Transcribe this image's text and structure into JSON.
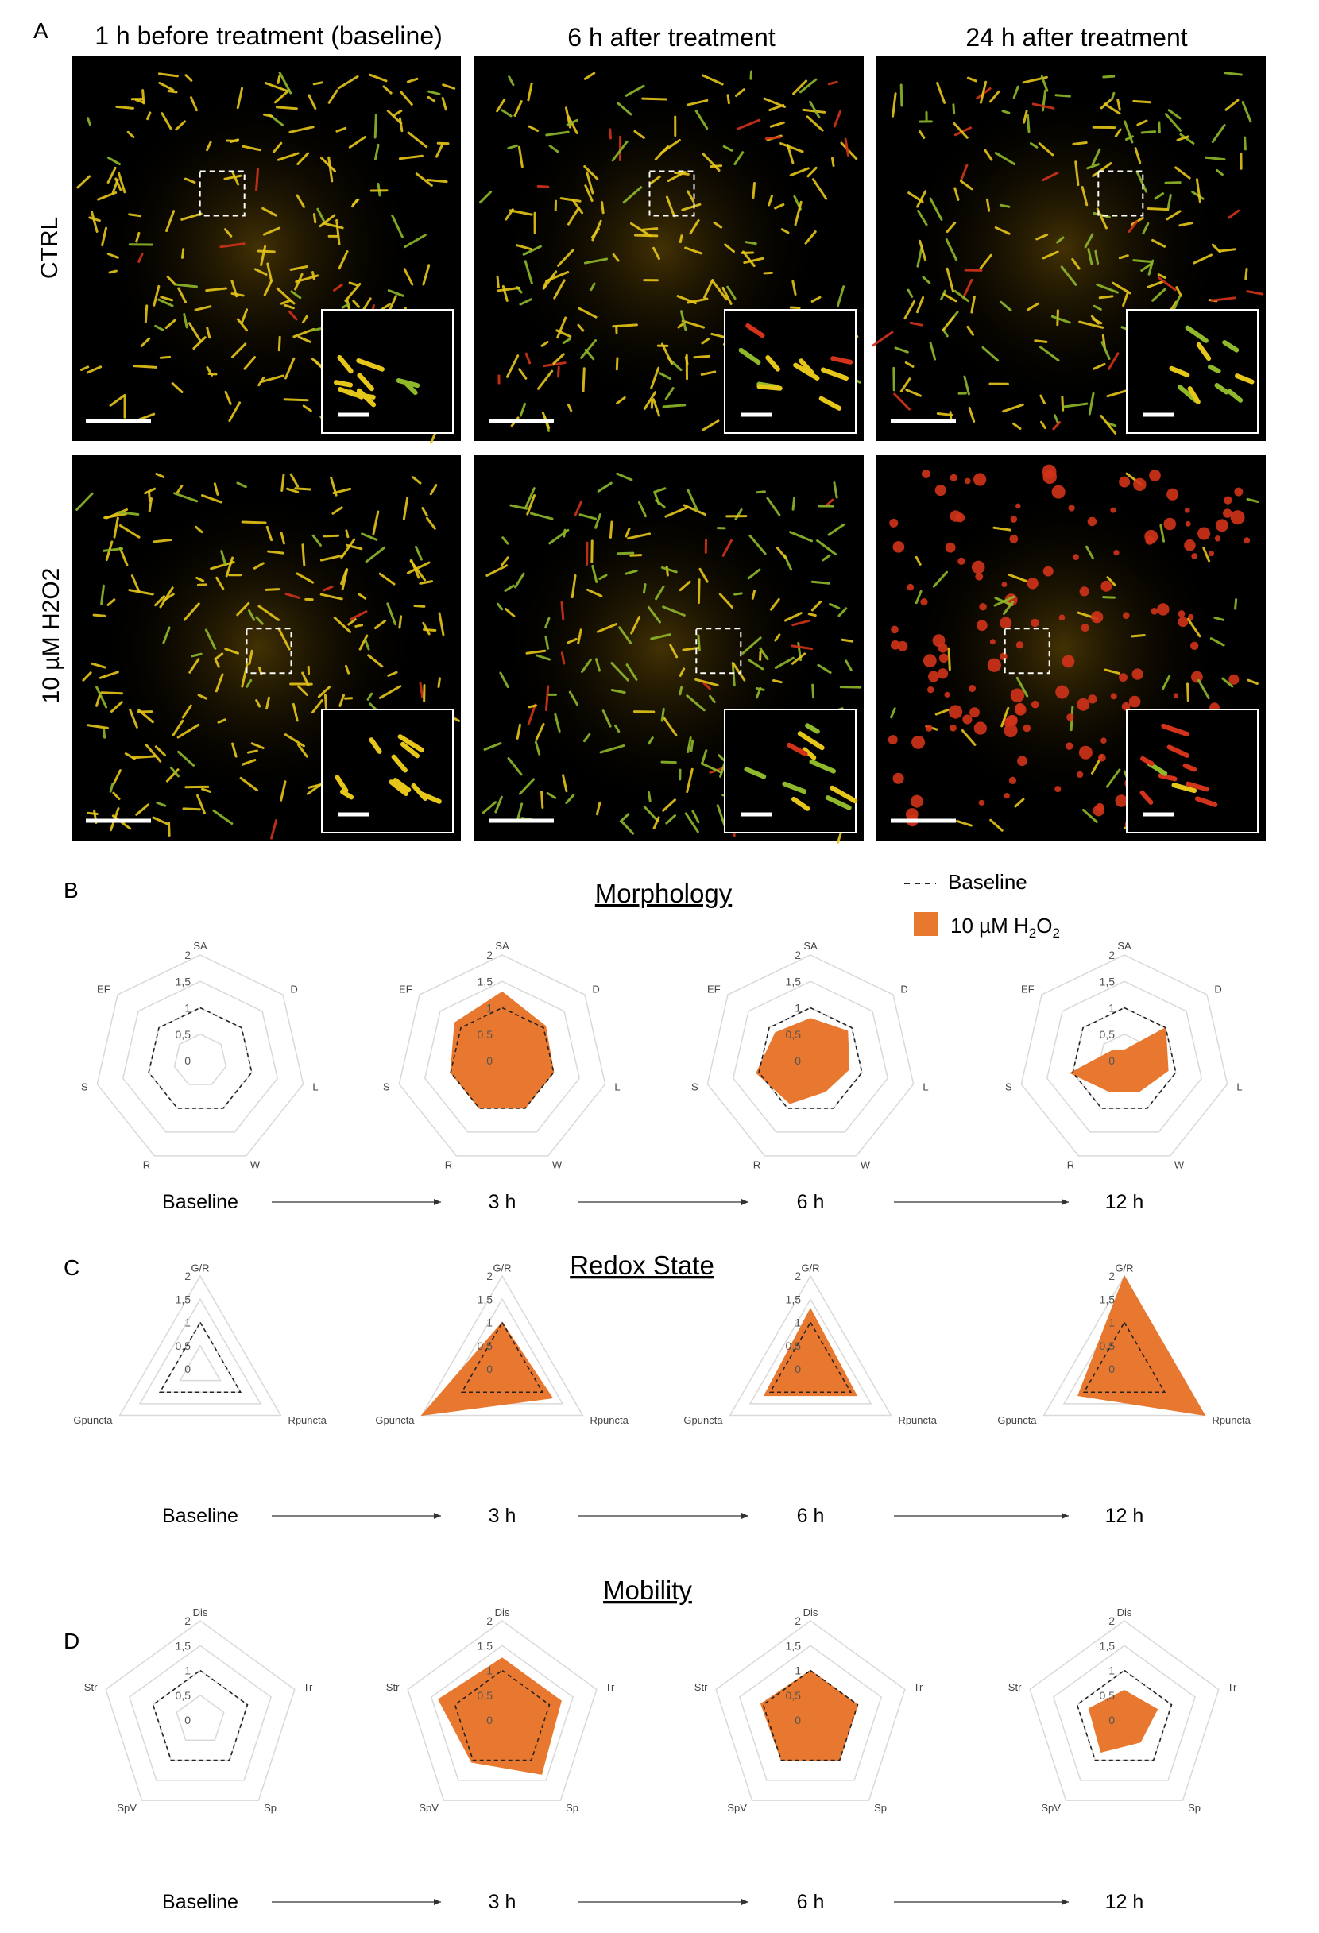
{
  "panel_letters": {
    "a": "A",
    "b": "B",
    "c": "C",
    "d": "D"
  },
  "panel_a": {
    "columns": [
      "1 h before treatment (baseline)",
      "6 h after treatment",
      "24 h after treatment"
    ],
    "rows": [
      "CTRL",
      "10 µM H2O2"
    ]
  },
  "legend": {
    "baseline": "Baseline",
    "treatment": "10 µM H2O2"
  },
  "colors": {
    "treatment": "#e8782f",
    "grid": "#d9d9d9",
    "baseline": "#222222"
  },
  "timepoints": [
    "Baseline",
    "3 h",
    "6 h",
    "12 h"
  ],
  "scale_ticks": [
    "0",
    "0,5",
    "1",
    "1,5",
    "2"
  ],
  "chart_data": [
    {
      "type": "radar",
      "title": "Morphology",
      "axes": [
        "SA",
        "D",
        "L",
        "W",
        "R",
        "S",
        "EF"
      ],
      "range": [
        0,
        2
      ],
      "panels": [
        {
          "time": "Baseline",
          "series": [
            {
              "name": "Baseline",
              "values": [
                1,
                1,
                1,
                1,
                1,
                1,
                1
              ]
            }
          ]
        },
        {
          "time": "3 h",
          "series": [
            {
              "name": "Baseline",
              "values": [
                1,
                1,
                1,
                1,
                1,
                1,
                1
              ]
            },
            {
              "name": "10 µM H2O2",
              "values": [
                1.3,
                1.05,
                1.0,
                1.0,
                1.0,
                1.0,
                1.15
              ]
            }
          ]
        },
        {
          "time": "6 h",
          "series": [
            {
              "name": "Baseline",
              "values": [
                1,
                1,
                1,
                1,
                1,
                1,
                1
              ]
            },
            {
              "name": "10 µM H2O2",
              "values": [
                0.8,
                0.9,
                0.75,
                0.65,
                0.9,
                1.05,
                0.85
              ]
            }
          ]
        },
        {
          "time": "12 h",
          "series": [
            {
              "name": "Baseline",
              "values": [
                1,
                1,
                1,
                1,
                1,
                1,
                1
              ]
            },
            {
              "name": "10 µM H2O2",
              "values": [
                0.2,
                1.0,
                0.85,
                0.65,
                0.65,
                1.05,
                0.3
              ]
            }
          ]
        }
      ]
    },
    {
      "type": "radar",
      "title": "Redox State",
      "axes": [
        "G/R",
        "Rpuncta",
        "Gpuncta"
      ],
      "range": [
        0,
        2
      ],
      "panels": [
        {
          "time": "Baseline",
          "series": [
            {
              "name": "Baseline",
              "values": [
                1,
                1,
                1
              ]
            }
          ]
        },
        {
          "time": "3 h",
          "series": [
            {
              "name": "Baseline",
              "values": [
                1,
                1,
                1
              ]
            },
            {
              "name": "10 µM H2O2",
              "values": [
                1.0,
                1.25,
                2.0
              ]
            }
          ]
        },
        {
          "time": "6 h",
          "series": [
            {
              "name": "Baseline",
              "values": [
                1,
                1,
                1
              ]
            },
            {
              "name": "10 µM H2O2",
              "values": [
                1.3,
                1.15,
                1.15
              ]
            }
          ]
        },
        {
          "time": "12 h",
          "series": [
            {
              "name": "Baseline",
              "values": [
                1,
                1,
                1
              ]
            },
            {
              "name": "10 µM H2O2",
              "values": [
                2.0,
                2.0,
                1.15
              ]
            }
          ]
        }
      ]
    },
    {
      "type": "radar",
      "title": "Mobility",
      "axes": [
        "Dis",
        "Tr",
        "Sp",
        "SpV",
        "Str"
      ],
      "range": [
        0,
        2
      ],
      "panels": [
        {
          "time": "Baseline",
          "series": [
            {
              "name": "Baseline",
              "values": [
                1,
                1,
                1,
                1,
                1
              ]
            }
          ]
        },
        {
          "time": "3 h",
          "series": [
            {
              "name": "Baseline",
              "values": [
                1,
                1,
                1,
                1,
                1
              ]
            },
            {
              "name": "10 µM H2O2",
              "values": [
                1.25,
                1.25,
                1.35,
                1.05,
                1.35
              ]
            }
          ]
        },
        {
          "time": "6 h",
          "series": [
            {
              "name": "Baseline",
              "values": [
                1,
                1,
                1,
                1,
                1
              ]
            },
            {
              "name": "10 µM H2O2",
              "values": [
                1.0,
                1.0,
                1.0,
                1.0,
                1.05
              ]
            }
          ]
        },
        {
          "time": "12 h",
          "series": [
            {
              "name": "Baseline",
              "values": [
                1,
                1,
                1,
                1,
                1
              ]
            },
            {
              "name": "10 µM H2O2",
              "values": [
                0.6,
                0.7,
                0.55,
                0.8,
                0.75
              ]
            }
          ]
        }
      ]
    }
  ]
}
